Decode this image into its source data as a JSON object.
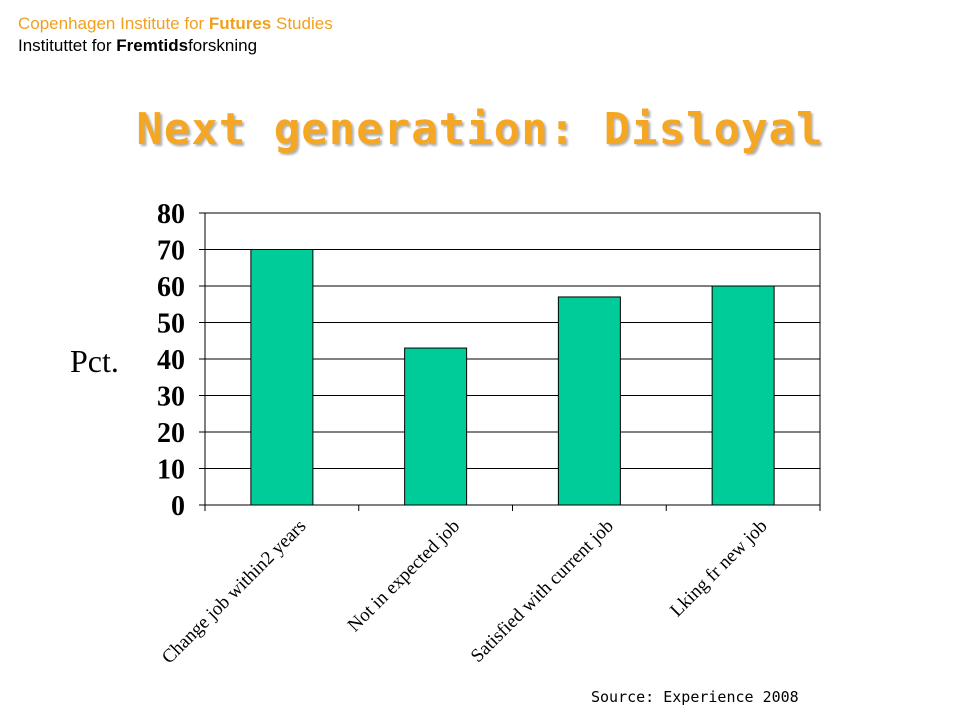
{
  "header": {
    "line1_a": "Copenhagen Institute for ",
    "line1_b": "Futures",
    "line1_c": " Studies",
    "line2_a": "Instituttet for ",
    "line2_b": "Fremtids",
    "line2_c": "forskning"
  },
  "source": "Source: Experience 2008",
  "colors": {
    "accent": "#f5a623",
    "bar": "#00cc99"
  },
  "chart_data": {
    "type": "bar",
    "title": "Next generation: Disloyal",
    "ylabel": "Pct.",
    "xlabel": "",
    "categories": [
      "Change job within2 years",
      "Not in expected job",
      "Satisfied with current job",
      "Lking fr new job"
    ],
    "values": [
      70,
      43,
      57,
      60
    ],
    "ylim": [
      0,
      80
    ],
    "yticks": [
      0,
      10,
      20,
      30,
      40,
      50,
      60,
      70,
      80
    ],
    "grid": true,
    "legend": "none"
  }
}
